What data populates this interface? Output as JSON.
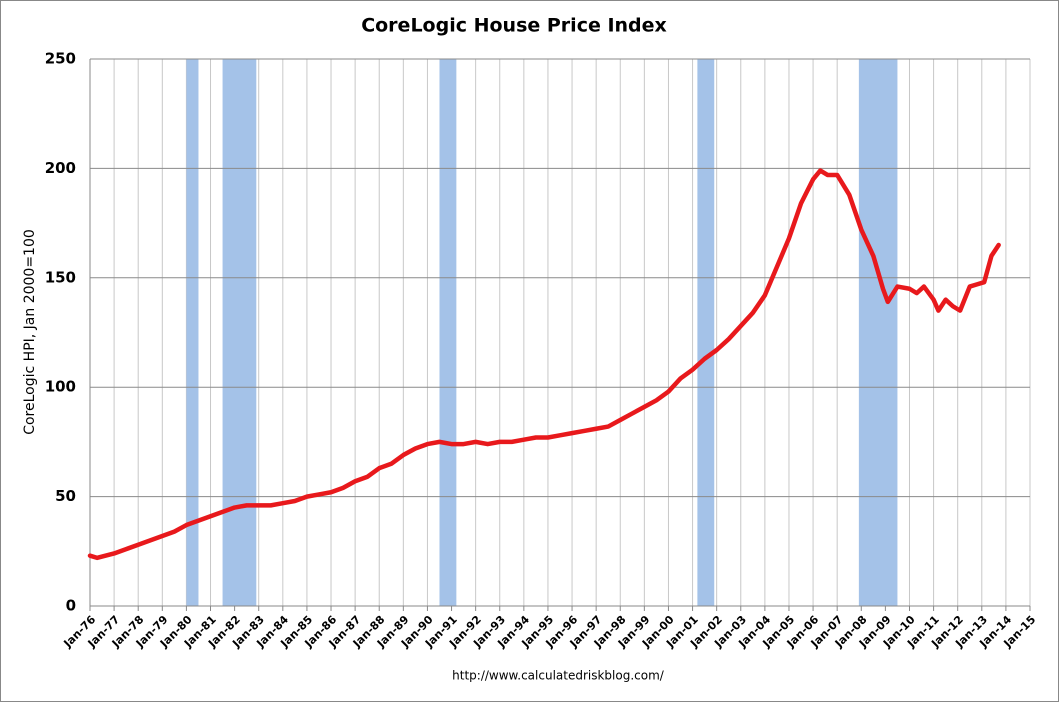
{
  "chart_data": {
    "type": "line",
    "title": "CoreLogic House Price Index",
    "y_label": "CoreLogic HPI, Jan 2000=100",
    "source": "http://www.calculatedriskblog.com/",
    "x": [
      1976.0,
      1976.3,
      1977.0,
      1977.5,
      1978.0,
      1978.5,
      1979.0,
      1979.5,
      1980.0,
      1980.5,
      1981.0,
      1981.5,
      1982.0,
      1982.5,
      1983.0,
      1983.5,
      1984.0,
      1984.5,
      1985.0,
      1985.5,
      1986.0,
      1986.5,
      1987.0,
      1987.5,
      1988.0,
      1988.5,
      1989.0,
      1989.5,
      1990.0,
      1990.5,
      1991.0,
      1991.5,
      1992.0,
      1992.5,
      1993.0,
      1993.5,
      1994.0,
      1994.5,
      1995.0,
      1995.5,
      1996.0,
      1996.5,
      1997.0,
      1997.5,
      1998.0,
      1998.5,
      1999.0,
      1999.5,
      2000.0,
      2000.5,
      2001.0,
      2001.5,
      2002.0,
      2002.5,
      2003.0,
      2003.5,
      2004.0,
      2004.5,
      2005.0,
      2005.5,
      2006.0,
      2006.3,
      2006.6,
      2007.0,
      2007.5,
      2008.0,
      2008.5,
      2008.9,
      2009.1,
      2009.5,
      2010.0,
      2010.3,
      2010.6,
      2011.0,
      2011.2,
      2011.5,
      2011.8,
      2012.1,
      2012.5,
      2012.8,
      2013.1,
      2013.4,
      2013.7
    ],
    "series": [
      {
        "name": "CoreLogic HPI",
        "color": "#e8191c",
        "values": [
          23,
          22,
          24,
          26,
          28,
          30,
          32,
          34,
          37,
          39,
          41,
          43,
          45,
          46,
          46,
          46,
          47,
          48,
          50,
          51,
          52,
          54,
          57,
          59,
          63,
          65,
          69,
          72,
          74,
          75,
          74,
          74,
          75,
          74,
          75,
          75,
          76,
          77,
          77,
          78,
          79,
          80,
          81,
          82,
          85,
          88,
          91,
          94,
          98,
          104,
          108,
          113,
          117,
          122,
          128,
          134,
          142,
          155,
          168,
          184,
          195,
          199,
          197,
          197,
          188,
          172,
          160,
          145,
          139,
          146,
          145,
          143,
          146,
          140,
          135,
          140,
          137,
          135,
          146,
          147,
          148,
          160,
          165
        ]
      }
    ],
    "recessions": [
      [
        1980.0,
        1980.5
      ],
      [
        1981.5,
        1982.9
      ],
      [
        1990.5,
        1991.2
      ],
      [
        2001.2,
        2001.9
      ],
      [
        2007.9,
        2009.5
      ]
    ],
    "recession_color": "#a4c2e8",
    "xlim": [
      1976,
      2015
    ],
    "xticks": [
      {
        "value": 1976,
        "label": "Jan-76"
      },
      {
        "value": 1977,
        "label": "Jan-77"
      },
      {
        "value": 1978,
        "label": "Jan-78"
      },
      {
        "value": 1979,
        "label": "Jan-79"
      },
      {
        "value": 1980,
        "label": "Jan-80"
      },
      {
        "value": 1981,
        "label": "Jan-81"
      },
      {
        "value": 1982,
        "label": "Jan-82"
      },
      {
        "value": 1983,
        "label": "Jan-83"
      },
      {
        "value": 1984,
        "label": "Jan-84"
      },
      {
        "value": 1985,
        "label": "Jan-85"
      },
      {
        "value": 1986,
        "label": "Jan-86"
      },
      {
        "value": 1987,
        "label": "Jan-87"
      },
      {
        "value": 1988,
        "label": "Jan-88"
      },
      {
        "value": 1989,
        "label": "Jan-89"
      },
      {
        "value": 1990,
        "label": "Jan-90"
      },
      {
        "value": 1991,
        "label": "Jan-91"
      },
      {
        "value": 1992,
        "label": "Jan-92"
      },
      {
        "value": 1993,
        "label": "Jan-93"
      },
      {
        "value": 1994,
        "label": "Jan-94"
      },
      {
        "value": 1995,
        "label": "Jan-95"
      },
      {
        "value": 1996,
        "label": "Jan-96"
      },
      {
        "value": 1997,
        "label": "Jan-97"
      },
      {
        "value": 1998,
        "label": "Jan-98"
      },
      {
        "value": 1999,
        "label": "Jan-99"
      },
      {
        "value": 2000,
        "label": "Jan-00"
      },
      {
        "value": 2001,
        "label": "Jan-01"
      },
      {
        "value": 2002,
        "label": "Jan-02"
      },
      {
        "value": 2003,
        "label": "Jan-03"
      },
      {
        "value": 2004,
        "label": "Jan-04"
      },
      {
        "value": 2005,
        "label": "Jan-05"
      },
      {
        "value": 2006,
        "label": "Jan-06"
      },
      {
        "value": 2007,
        "label": "Jan-07"
      },
      {
        "value": 2008,
        "label": "Jan-08"
      },
      {
        "value": 2009,
        "label": "Jan-09"
      },
      {
        "value": 2010,
        "label": "Jan-10"
      },
      {
        "value": 2011,
        "label": "Jan-11"
      },
      {
        "value": 2012,
        "label": "Jan-12"
      },
      {
        "value": 2013,
        "label": "Jan-13"
      },
      {
        "value": 2014,
        "label": "Jan-14"
      },
      {
        "value": 2015,
        "label": "Jan-15"
      }
    ],
    "ylim": [
      0,
      250
    ],
    "yticks": [
      0,
      50,
      100,
      150,
      200,
      250
    ],
    "grid": true
  }
}
